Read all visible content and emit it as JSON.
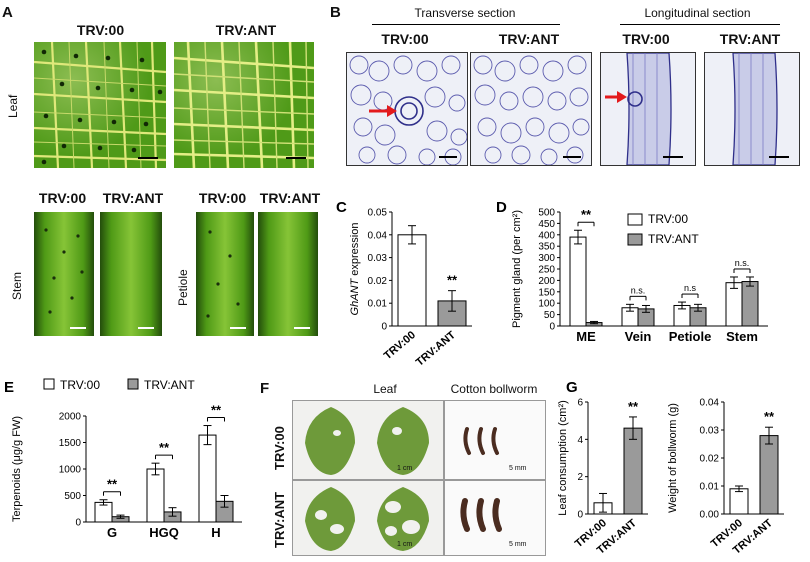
{
  "panelA": {
    "label": "A",
    "trv00": "TRV:00",
    "trvant": "TRV:ANT",
    "leaf_label": "Leaf",
    "stem_label": "Stem",
    "petiole_label": "Petiole"
  },
  "panelB": {
    "label": "B",
    "transverse": "Transverse section",
    "longitudinal": "Longitudinal section",
    "trv00": "TRV:00",
    "trvant": "TRV:ANT"
  },
  "panelF": {
    "label": "F",
    "leaf": "Leaf",
    "bollworm": "Cotton bollworm",
    "trv00": "TRV:00",
    "trvant": "TRV:ANT",
    "scale_1cm": "1 cm",
    "scale_5mm": "5 mm"
  },
  "colors": {
    "bar_trv00": "#ffffff",
    "bar_trvant": "#9a9a9a",
    "leaf_green": "#4f9a18",
    "vein_yellow": "#dfe87a",
    "arrow_red": "#e31a1c",
    "stain_purple": "#3a3a9a"
  },
  "chart_data": [
    {
      "id": "C",
      "label": "C",
      "type": "bar",
      "categories": [
        "TRV:00",
        "TRV:ANT"
      ],
      "values": [
        0.04,
        0.011
      ],
      "errors": [
        0.004,
        0.0045
      ],
      "significance": [
        "",
        "**"
      ],
      "ylabel_pre": "",
      "ylabel_ital": "GhANT",
      "ylabel_post": " expression",
      "ylim": [
        0,
        0.05
      ],
      "yticks": [
        "0",
        "0.01",
        "0.02",
        "0.03",
        "0.04",
        "0.05"
      ]
    },
    {
      "id": "D",
      "label": "D",
      "type": "bar",
      "categories": [
        "ME",
        "Vein",
        "Petiole",
        "Stem"
      ],
      "series": [
        {
          "name": "TRV:00",
          "values": [
            390,
            80,
            90,
            190
          ],
          "errors": [
            30,
            15,
            15,
            25
          ]
        },
        {
          "name": "TRV:ANT",
          "values": [
            15,
            75,
            80,
            195
          ],
          "errors": [
            5,
            15,
            15,
            20
          ]
        }
      ],
      "significance": [
        "**",
        "n.s.",
        "n.s",
        "n.s."
      ],
      "ylabel": "Pigment gland (per cm²)",
      "ylim": [
        0,
        500
      ],
      "yticks": [
        "0",
        "50",
        "100",
        "150",
        "200",
        "250",
        "300",
        "350",
        "400",
        "450",
        "500"
      ],
      "legend_position": "top-right"
    },
    {
      "id": "E",
      "label": "E",
      "type": "bar",
      "categories": [
        "G",
        "HGQ",
        "H"
      ],
      "series": [
        {
          "name": "TRV:00",
          "values": [
            370,
            1000,
            1640
          ],
          "errors": [
            50,
            110,
            180
          ]
        },
        {
          "name": "TRV:ANT",
          "values": [
            100,
            190,
            390
          ],
          "errors": [
            30,
            80,
            110
          ]
        }
      ],
      "significance": [
        "**",
        "**",
        "**"
      ],
      "ylabel": "Terpenoids (μg/g FW)",
      "ylim": [
        0,
        2000
      ],
      "yticks": [
        "0",
        "500",
        "1000",
        "1500",
        "2000"
      ],
      "legend_position": "top"
    },
    {
      "id": "G1",
      "label": "G",
      "type": "bar",
      "categories": [
        "TRV:00",
        "TRV:ANT"
      ],
      "values": [
        0.6,
        4.6
      ],
      "errors": [
        0.5,
        0.6
      ],
      "significance": [
        "",
        "**"
      ],
      "ylabel": "Leaf consumption (cm²)",
      "ylim": [
        0,
        6
      ],
      "yticks": [
        "0",
        "2",
        "4",
        "6"
      ]
    },
    {
      "id": "G2",
      "label": "",
      "type": "bar",
      "categories": [
        "TRV:00",
        "TRV:ANT"
      ],
      "values": [
        0.009,
        0.028
      ],
      "errors": [
        0.001,
        0.003
      ],
      "significance": [
        "",
        "**"
      ],
      "ylabel": "Weight of bollworm (g)",
      "ylim": [
        0,
        0.04
      ],
      "yticks": [
        "0.00",
        "0.01",
        "0.02",
        "0.03",
        "0.04"
      ]
    }
  ]
}
